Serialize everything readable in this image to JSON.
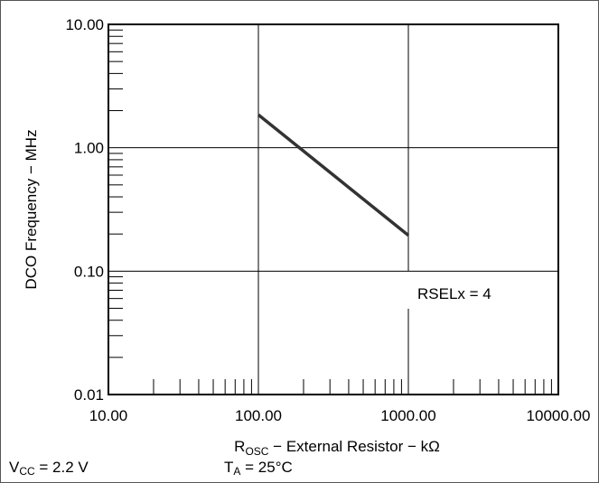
{
  "chart_data": {
    "type": "line",
    "xlog": true,
    "ylog": true,
    "xlim": [
      10,
      10000
    ],
    "ylim": [
      0.01,
      10
    ],
    "x_ticks": [
      "10.00",
      "100.00",
      "1000.00",
      "10000.00"
    ],
    "y_ticks": [
      "0.01",
      "0.10",
      "1.00",
      "10.00"
    ],
    "ylabel": "DCO Frequency − MHz",
    "xlabel_parts": {
      "r": "R",
      "sub": "OSC",
      "rest": " − External Resistor − kΩ"
    },
    "grid": true,
    "series": [
      {
        "x": [
          100,
          1000
        ],
        "y": [
          1.85,
          0.195
        ],
        "color": "#333333"
      }
    ],
    "annotation": "RSELx = 4"
  },
  "conditions": {
    "vcc": {
      "main": "V",
      "sub": "CC",
      "rest": " = 2.2 V"
    },
    "ta": {
      "main": "T",
      "sub": "A",
      "rest": " = 25°C"
    }
  }
}
